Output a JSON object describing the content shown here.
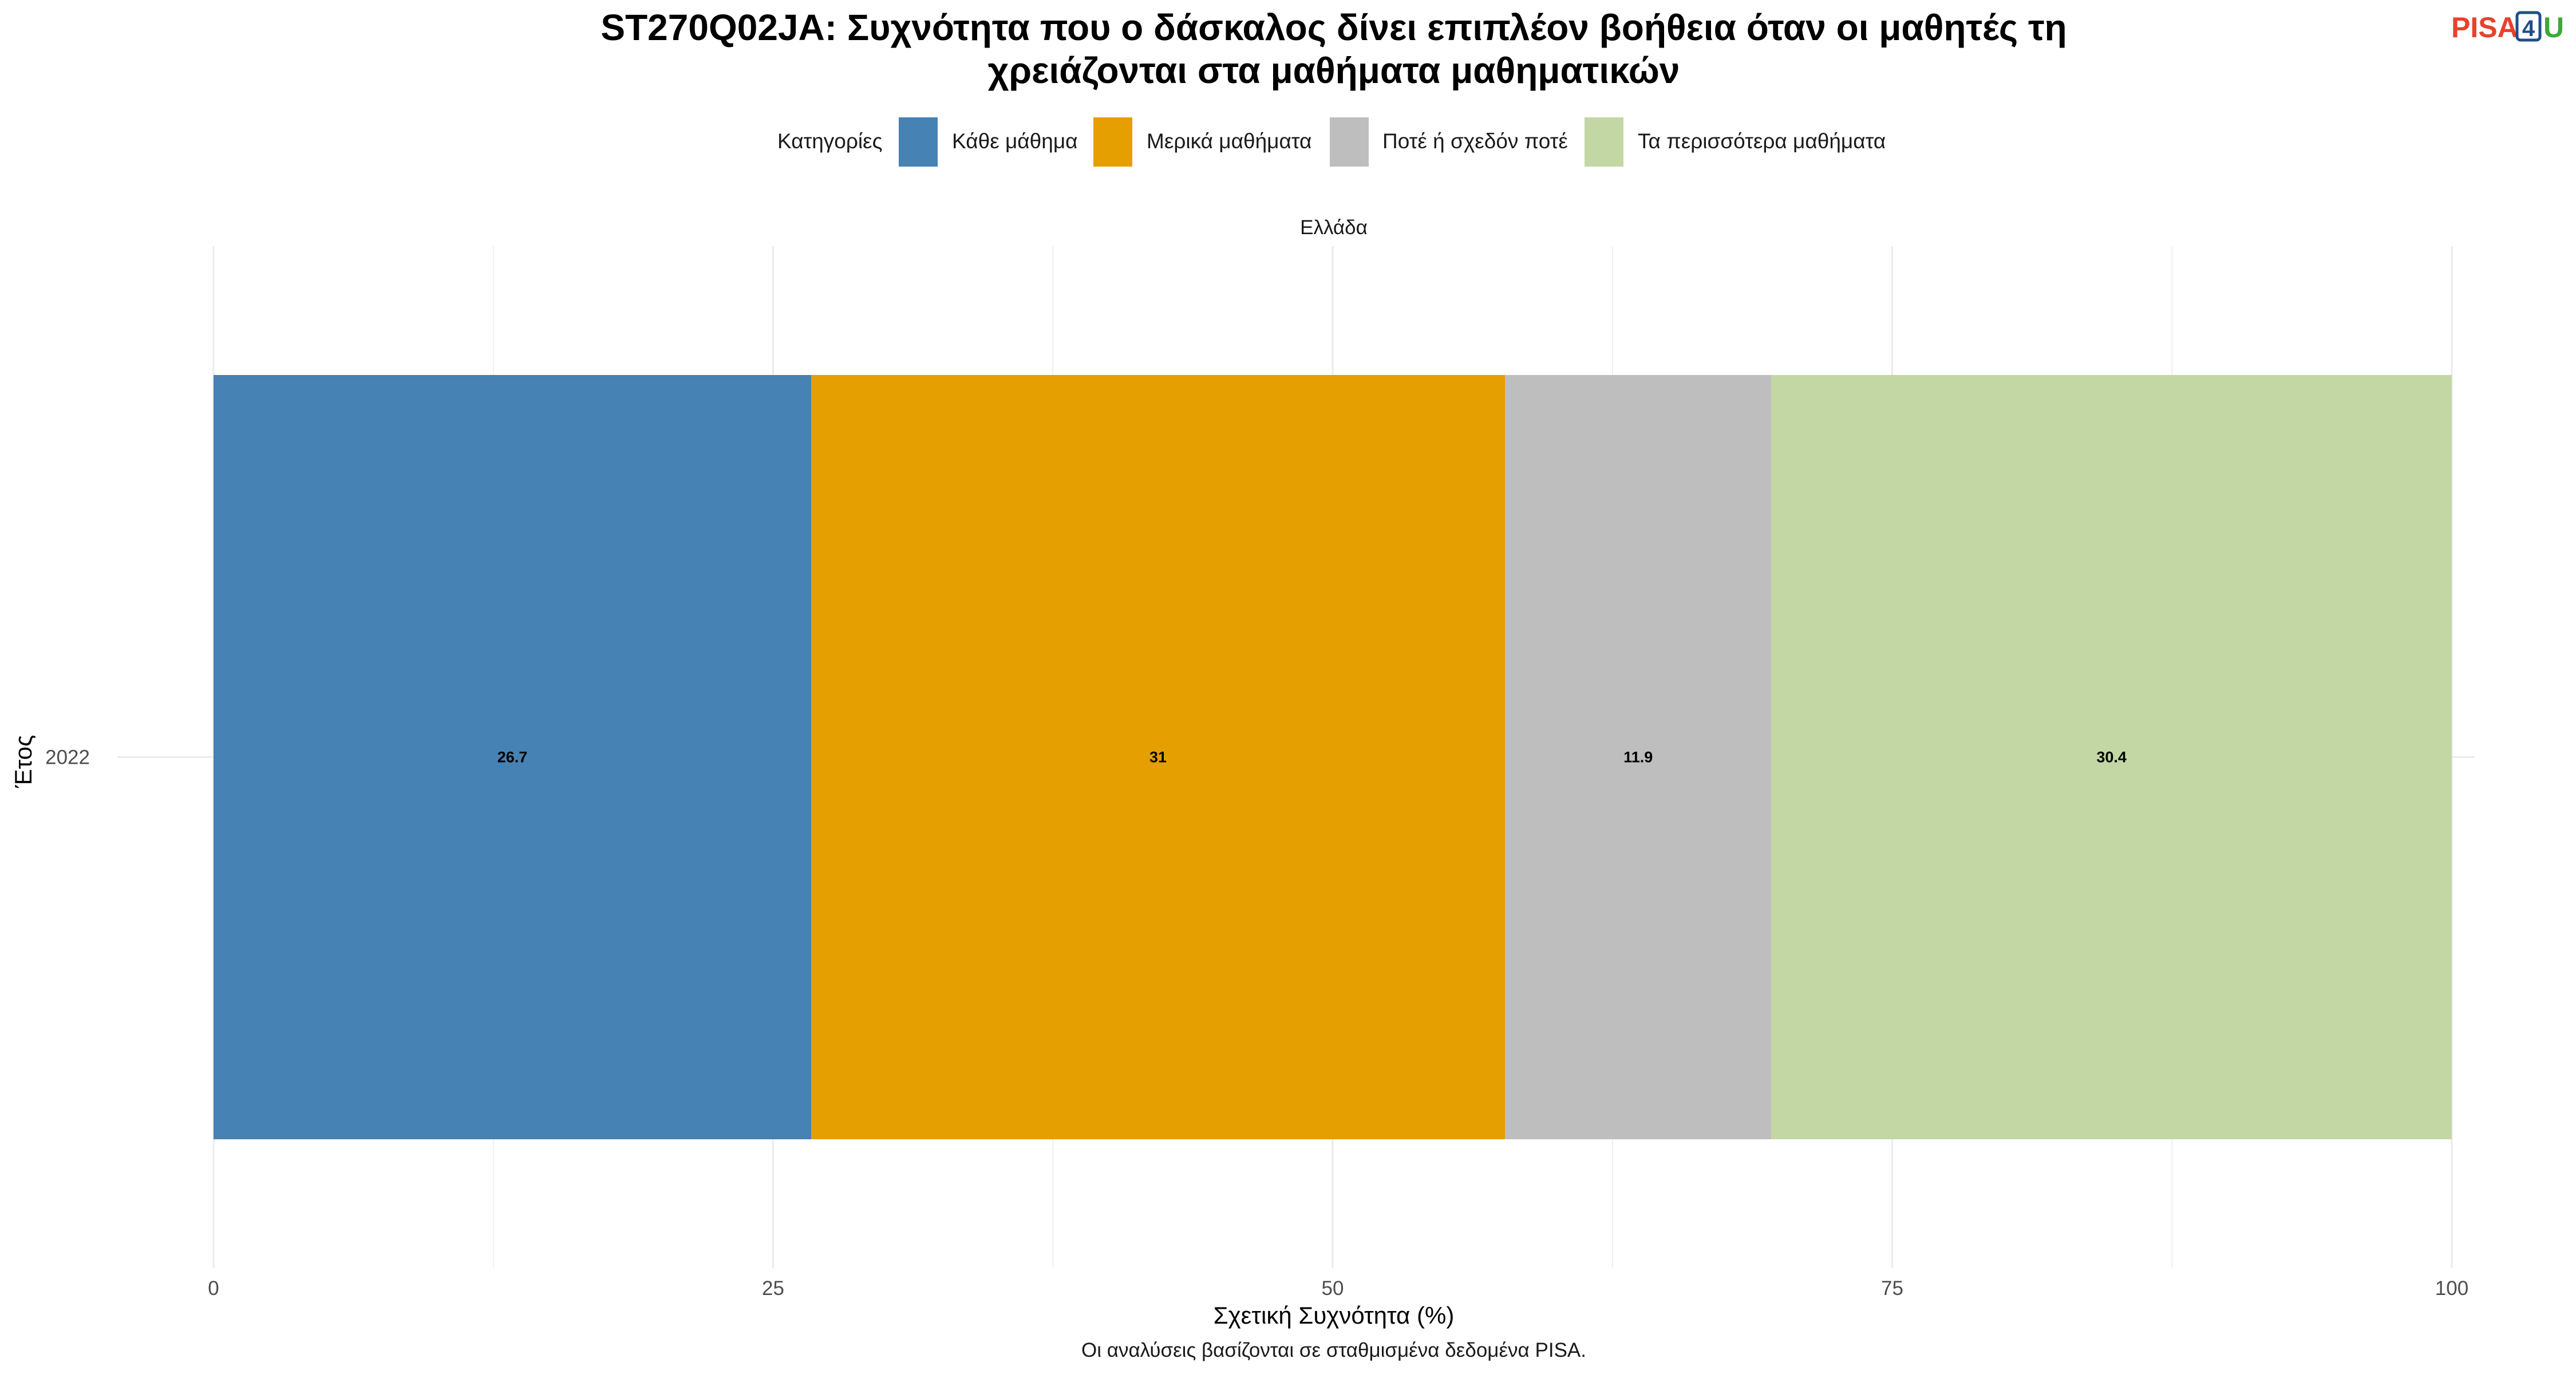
{
  "header": {
    "title_line1": "ST270Q02JA: Συχνότητα που ο δάσκαλος δίνει επιπλέον βοήθεια όταν οι μαθητές τη",
    "title_line2": "χρειάζονται στα μαθήματα μαθηματικών",
    "logo": {
      "part1": "PISA",
      "part2": "4",
      "part3": "U",
      "color1": "#e8412c",
      "color2": "#1f4e8c",
      "color3": "#3aaa35"
    }
  },
  "legend": {
    "title": "Κατηγορίες",
    "position": "top"
  },
  "facet": {
    "label": "Ελλάδα"
  },
  "caption": "Οι αναλύσεις βασίζονται σε σταθμισμένα δεδομένα PISA.",
  "chart_data": {
    "type": "bar",
    "orientation": "horizontal",
    "stacked": true,
    "title": "ST270Q02JA: Συχνότητα που ο δάσκαλος δίνει επιπλέον βοήθεια όταν οι μαθητές τη χρειάζονται στα μαθήματα μαθηματικών",
    "categories": [
      "2022"
    ],
    "series": [
      {
        "name": "Κάθε μάθημα",
        "values": [
          26.7
        ],
        "color": "#4682b4",
        "label": "26.7"
      },
      {
        "name": "Μερικά μαθήματα",
        "values": [
          31
        ],
        "color": "#e69f00",
        "label": "31"
      },
      {
        "name": "Ποτέ ή σχεδόν ποτέ",
        "values": [
          11.9
        ],
        "color": "#bebebe",
        "label": "11.9"
      },
      {
        "name": "Τα περισσότερα μαθήματα",
        "values": [
          30.4
        ],
        "color": "#c3d7a4",
        "label": "30.4"
      }
    ],
    "xlabel": "Σχετική Συχνότητα (%)",
    "ylabel": "Έτος",
    "xlim": [
      0,
      100
    ],
    "xticks": [
      0,
      25,
      50,
      75,
      100
    ],
    "xtick_labels": [
      "0",
      "25",
      "50",
      "75",
      "100"
    ],
    "grid": true,
    "legend_position": "top"
  }
}
